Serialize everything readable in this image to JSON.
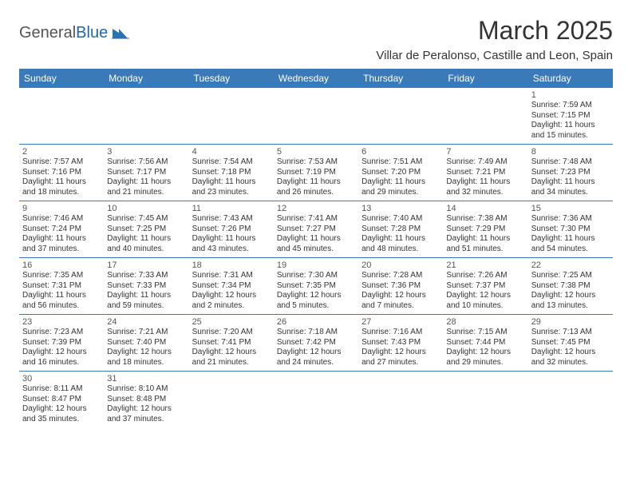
{
  "logo": {
    "text_a": "General",
    "text_b": "Blue"
  },
  "header": {
    "month_title": "March 2025",
    "location": "Villar de Peralonso, Castille and Leon, Spain"
  },
  "colors": {
    "header_bg": "#3a7ab8",
    "header_text": "#ffffff",
    "cell_border": "#3a7ab8"
  },
  "weekdays": [
    "Sunday",
    "Monday",
    "Tuesday",
    "Wednesday",
    "Thursday",
    "Friday",
    "Saturday"
  ],
  "weeks": [
    [
      null,
      null,
      null,
      null,
      null,
      null,
      {
        "n": "1",
        "sr": "Sunrise: 7:59 AM",
        "ss": "Sunset: 7:15 PM",
        "dl": "Daylight: 11 hours and 15 minutes."
      }
    ],
    [
      {
        "n": "2",
        "sr": "Sunrise: 7:57 AM",
        "ss": "Sunset: 7:16 PM",
        "dl": "Daylight: 11 hours and 18 minutes."
      },
      {
        "n": "3",
        "sr": "Sunrise: 7:56 AM",
        "ss": "Sunset: 7:17 PM",
        "dl": "Daylight: 11 hours and 21 minutes."
      },
      {
        "n": "4",
        "sr": "Sunrise: 7:54 AM",
        "ss": "Sunset: 7:18 PM",
        "dl": "Daylight: 11 hours and 23 minutes."
      },
      {
        "n": "5",
        "sr": "Sunrise: 7:53 AM",
        "ss": "Sunset: 7:19 PM",
        "dl": "Daylight: 11 hours and 26 minutes."
      },
      {
        "n": "6",
        "sr": "Sunrise: 7:51 AM",
        "ss": "Sunset: 7:20 PM",
        "dl": "Daylight: 11 hours and 29 minutes."
      },
      {
        "n": "7",
        "sr": "Sunrise: 7:49 AM",
        "ss": "Sunset: 7:21 PM",
        "dl": "Daylight: 11 hours and 32 minutes."
      },
      {
        "n": "8",
        "sr": "Sunrise: 7:48 AM",
        "ss": "Sunset: 7:23 PM",
        "dl": "Daylight: 11 hours and 34 minutes."
      }
    ],
    [
      {
        "n": "9",
        "sr": "Sunrise: 7:46 AM",
        "ss": "Sunset: 7:24 PM",
        "dl": "Daylight: 11 hours and 37 minutes."
      },
      {
        "n": "10",
        "sr": "Sunrise: 7:45 AM",
        "ss": "Sunset: 7:25 PM",
        "dl": "Daylight: 11 hours and 40 minutes."
      },
      {
        "n": "11",
        "sr": "Sunrise: 7:43 AM",
        "ss": "Sunset: 7:26 PM",
        "dl": "Daylight: 11 hours and 43 minutes."
      },
      {
        "n": "12",
        "sr": "Sunrise: 7:41 AM",
        "ss": "Sunset: 7:27 PM",
        "dl": "Daylight: 11 hours and 45 minutes."
      },
      {
        "n": "13",
        "sr": "Sunrise: 7:40 AM",
        "ss": "Sunset: 7:28 PM",
        "dl": "Daylight: 11 hours and 48 minutes."
      },
      {
        "n": "14",
        "sr": "Sunrise: 7:38 AM",
        "ss": "Sunset: 7:29 PM",
        "dl": "Daylight: 11 hours and 51 minutes."
      },
      {
        "n": "15",
        "sr": "Sunrise: 7:36 AM",
        "ss": "Sunset: 7:30 PM",
        "dl": "Daylight: 11 hours and 54 minutes."
      }
    ],
    [
      {
        "n": "16",
        "sr": "Sunrise: 7:35 AM",
        "ss": "Sunset: 7:31 PM",
        "dl": "Daylight: 11 hours and 56 minutes."
      },
      {
        "n": "17",
        "sr": "Sunrise: 7:33 AM",
        "ss": "Sunset: 7:33 PM",
        "dl": "Daylight: 11 hours and 59 minutes."
      },
      {
        "n": "18",
        "sr": "Sunrise: 7:31 AM",
        "ss": "Sunset: 7:34 PM",
        "dl": "Daylight: 12 hours and 2 minutes."
      },
      {
        "n": "19",
        "sr": "Sunrise: 7:30 AM",
        "ss": "Sunset: 7:35 PM",
        "dl": "Daylight: 12 hours and 5 minutes."
      },
      {
        "n": "20",
        "sr": "Sunrise: 7:28 AM",
        "ss": "Sunset: 7:36 PM",
        "dl": "Daylight: 12 hours and 7 minutes."
      },
      {
        "n": "21",
        "sr": "Sunrise: 7:26 AM",
        "ss": "Sunset: 7:37 PM",
        "dl": "Daylight: 12 hours and 10 minutes."
      },
      {
        "n": "22",
        "sr": "Sunrise: 7:25 AM",
        "ss": "Sunset: 7:38 PM",
        "dl": "Daylight: 12 hours and 13 minutes."
      }
    ],
    [
      {
        "n": "23",
        "sr": "Sunrise: 7:23 AM",
        "ss": "Sunset: 7:39 PM",
        "dl": "Daylight: 12 hours and 16 minutes."
      },
      {
        "n": "24",
        "sr": "Sunrise: 7:21 AM",
        "ss": "Sunset: 7:40 PM",
        "dl": "Daylight: 12 hours and 18 minutes."
      },
      {
        "n": "25",
        "sr": "Sunrise: 7:20 AM",
        "ss": "Sunset: 7:41 PM",
        "dl": "Daylight: 12 hours and 21 minutes."
      },
      {
        "n": "26",
        "sr": "Sunrise: 7:18 AM",
        "ss": "Sunset: 7:42 PM",
        "dl": "Daylight: 12 hours and 24 minutes."
      },
      {
        "n": "27",
        "sr": "Sunrise: 7:16 AM",
        "ss": "Sunset: 7:43 PM",
        "dl": "Daylight: 12 hours and 27 minutes."
      },
      {
        "n": "28",
        "sr": "Sunrise: 7:15 AM",
        "ss": "Sunset: 7:44 PM",
        "dl": "Daylight: 12 hours and 29 minutes."
      },
      {
        "n": "29",
        "sr": "Sunrise: 7:13 AM",
        "ss": "Sunset: 7:45 PM",
        "dl": "Daylight: 12 hours and 32 minutes."
      }
    ],
    [
      {
        "n": "30",
        "sr": "Sunrise: 8:11 AM",
        "ss": "Sunset: 8:47 PM",
        "dl": "Daylight: 12 hours and 35 minutes."
      },
      {
        "n": "31",
        "sr": "Sunrise: 8:10 AM",
        "ss": "Sunset: 8:48 PM",
        "dl": "Daylight: 12 hours and 37 minutes."
      },
      null,
      null,
      null,
      null,
      null
    ]
  ]
}
